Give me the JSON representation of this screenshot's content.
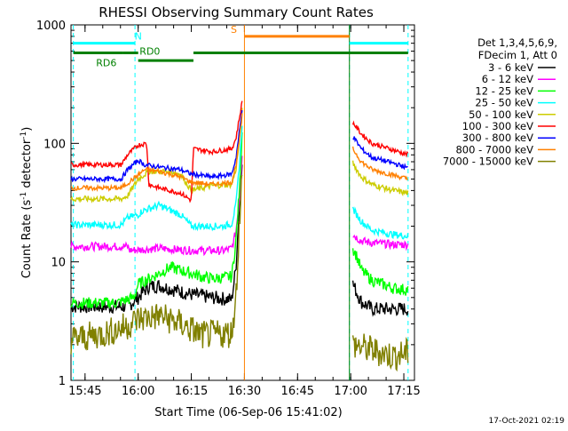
{
  "chart_data": {
    "type": "line",
    "title": "RHESSI Observing Summary Count Rates",
    "xlabel": "Start Time (06-Sep-06 15:41:02)",
    "ylabel_parts": [
      "Count Rate (s",
      "-1",
      " detector",
      "-1",
      ")"
    ],
    "footer": "17-Oct-2021 02:19",
    "xlim": [
      15.6839,
      17.3
    ],
    "ylim": [
      1,
      1000
    ],
    "yscale": "log",
    "x_ticks": [
      {
        "value": 15.75,
        "label": "15:45"
      },
      {
        "value": 16.0,
        "label": "16:00"
      },
      {
        "value": 16.25,
        "label": "16:15"
      },
      {
        "value": 16.5,
        "label": "16:30"
      },
      {
        "value": 16.75,
        "label": "16:45"
      },
      {
        "value": 17.0,
        "label": "17:00"
      },
      {
        "value": 17.25,
        "label": "17:15"
      }
    ],
    "x_minor_step": 0.0833333,
    "y_ticks": [
      {
        "value": 1,
        "label": "1"
      },
      {
        "value": 10,
        "label": "10"
      },
      {
        "value": 100,
        "label": "100"
      },
      {
        "value": 1000,
        "label": "1000"
      }
    ],
    "legend": {
      "position": "right",
      "header": [
        "Det 1,3,4,5,6,9,",
        "FDecim 1, Att 0"
      ]
    },
    "series": [
      {
        "name": "3 - 6 keV",
        "color": "#000000",
        "jitter": 0.12,
        "segments": [
          [
            [
              15.684,
              4.2
            ],
            [
              15.95,
              4.2
            ],
            [
              16.0,
              5.0
            ],
            [
              16.02,
              5.5
            ],
            [
              16.05,
              6.2
            ],
            [
              16.1,
              6.3
            ],
            [
              16.2,
              5.6
            ],
            [
              16.25,
              5.3
            ],
            [
              16.35,
              5.0
            ],
            [
              16.44,
              4.8
            ],
            [
              16.46,
              9
            ],
            [
              16.48,
              40
            ],
            [
              16.49,
              80
            ]
          ],
          [
            [
              17.01,
              6.5
            ],
            [
              17.05,
              4.6
            ],
            [
              17.1,
              4.0
            ],
            [
              17.2,
              4.0
            ],
            [
              17.27,
              4.0
            ]
          ]
        ]
      },
      {
        "name": "6 - 12 keV",
        "color": "#ff00ff",
        "jitter": 0.07,
        "segments": [
          [
            [
              15.684,
              13.5
            ],
            [
              15.95,
              13.5
            ],
            [
              15.96,
              12.5
            ],
            [
              16.1,
              13.0
            ],
            [
              16.15,
              12.8
            ],
            [
              16.25,
              12.5
            ],
            [
              16.4,
              12.4
            ],
            [
              16.44,
              13
            ],
            [
              16.46,
              18
            ],
            [
              16.48,
              40
            ],
            [
              16.49,
              90
            ]
          ],
          [
            [
              17.01,
              17
            ],
            [
              17.05,
              15
            ],
            [
              17.1,
              14.5
            ],
            [
              17.2,
              14.0
            ],
            [
              17.27,
              14.0
            ]
          ]
        ]
      },
      {
        "name": "12 - 25 keV",
        "color": "#00ff00",
        "jitter": 0.1,
        "segments": [
          [
            [
              15.684,
              4.5
            ],
            [
              15.9,
              4.5
            ],
            [
              15.98,
              5.0
            ],
            [
              16.0,
              6.5
            ],
            [
              16.1,
              8.0
            ],
            [
              16.15,
              9.0
            ],
            [
              16.25,
              8.0
            ],
            [
              16.3,
              7.5
            ],
            [
              16.35,
              7.2
            ],
            [
              16.44,
              7.5
            ],
            [
              16.46,
              15
            ],
            [
              16.48,
              50
            ],
            [
              16.49,
              150
            ]
          ],
          [
            [
              17.01,
              13
            ],
            [
              17.03,
              11
            ],
            [
              17.05,
              8.5
            ],
            [
              17.1,
              7.0
            ],
            [
              17.2,
              6.0
            ],
            [
              17.27,
              5.8
            ]
          ]
        ]
      },
      {
        "name": "25 - 50 keV",
        "color": "#00ffff",
        "jitter": 0.06,
        "segments": [
          [
            [
              15.684,
              20.5
            ],
            [
              15.92,
              20.5
            ],
            [
              15.95,
              23.5
            ],
            [
              16.0,
              25.0
            ],
            [
              16.02,
              27.0
            ],
            [
              16.1,
              30.0
            ],
            [
              16.2,
              25.0
            ],
            [
              16.25,
              20.0
            ],
            [
              16.4,
              20.0
            ],
            [
              16.44,
              21
            ],
            [
              16.46,
              30
            ],
            [
              16.48,
              80
            ],
            [
              16.49,
              160
            ]
          ],
          [
            [
              17.01,
              28
            ],
            [
              17.05,
              22
            ],
            [
              17.1,
              18.5
            ],
            [
              17.2,
              17.0
            ],
            [
              17.27,
              16.5
            ]
          ]
        ]
      },
      {
        "name": "50 - 100 keV",
        "color": "#cccc00",
        "jitter": 0.05,
        "segments": [
          [
            [
              15.684,
              34
            ],
            [
              15.92,
              34
            ],
            [
              15.95,
              36
            ],
            [
              16.0,
              50
            ],
            [
              16.05,
              58
            ],
            [
              16.15,
              58
            ],
            [
              16.2,
              55
            ],
            [
              16.25,
              40
            ],
            [
              16.35,
              44
            ],
            [
              16.44,
              45
            ],
            [
              16.46,
              60
            ],
            [
              16.48,
              120
            ],
            [
              16.49,
              200
            ]
          ],
          [
            [
              17.01,
              68
            ],
            [
              17.05,
              52
            ],
            [
              17.1,
              45
            ],
            [
              17.2,
              40
            ],
            [
              17.27,
              38
            ]
          ]
        ]
      },
      {
        "name": "100 - 300 keV",
        "color": "#ff0000",
        "jitter": 0.04,
        "segments": [
          [
            [
              15.684,
              66
            ],
            [
              15.92,
              66
            ],
            [
              15.95,
              80
            ],
            [
              16.0,
              97
            ],
            [
              16.04,
              100
            ],
            [
              16.05,
              45
            ],
            [
              16.1,
              42
            ],
            [
              16.2,
              38
            ],
            [
              16.25,
              33
            ],
            [
              16.26,
              90
            ],
            [
              16.35,
              85
            ],
            [
              16.44,
              90
            ],
            [
              16.46,
              110
            ],
            [
              16.48,
              180
            ],
            [
              16.49,
              230
            ]
          ],
          [
            [
              17.01,
              150
            ],
            [
              17.05,
              120
            ],
            [
              17.1,
              100
            ],
            [
              17.2,
              88
            ],
            [
              17.27,
              80
            ]
          ]
        ]
      },
      {
        "name": "300 - 800 keV",
        "color": "#0000ff",
        "jitter": 0.04,
        "segments": [
          [
            [
              15.684,
              50
            ],
            [
              15.92,
              50
            ],
            [
              15.95,
              60
            ],
            [
              16.0,
              72
            ],
            [
              16.03,
              66
            ],
            [
              16.1,
              63
            ],
            [
              16.2,
              60
            ],
            [
              16.25,
              55
            ],
            [
              16.35,
              52
            ],
            [
              16.44,
              55
            ],
            [
              16.46,
              75
            ],
            [
              16.48,
              140
            ],
            [
              16.49,
              200
            ]
          ],
          [
            [
              17.01,
              115
            ],
            [
              17.05,
              90
            ],
            [
              17.1,
              76
            ],
            [
              17.2,
              68
            ],
            [
              17.27,
              62
            ]
          ]
        ]
      },
      {
        "name": "800 - 7000 keV",
        "color": "#ff8000",
        "jitter": 0.04,
        "segments": [
          [
            [
              15.684,
              42
            ],
            [
              15.92,
              42
            ],
            [
              15.95,
              46
            ],
            [
              16.0,
              54
            ],
            [
              16.03,
              60
            ],
            [
              16.1,
              58
            ],
            [
              16.2,
              52
            ],
            [
              16.25,
              47
            ],
            [
              16.35,
              45
            ],
            [
              16.44,
              47
            ],
            [
              16.46,
              65
            ],
            [
              16.48,
              120
            ],
            [
              16.49,
              180
            ]
          ],
          [
            [
              17.01,
              90
            ],
            [
              17.05,
              70
            ],
            [
              17.1,
              60
            ],
            [
              17.2,
              54
            ],
            [
              17.27,
              50
            ]
          ]
        ]
      },
      {
        "name": "7000 - 15000 keV",
        "color": "#808000",
        "jitter": 0.25,
        "segments": [
          [
            [
              15.684,
              2.2
            ],
            [
              15.85,
              2.5
            ],
            [
              15.95,
              2.9
            ],
            [
              16.0,
              3.3
            ],
            [
              16.1,
              3.5
            ],
            [
              16.2,
              3.0
            ],
            [
              16.3,
              2.4
            ],
            [
              16.44,
              2.5
            ],
            [
              16.46,
              5
            ],
            [
              16.48,
              30
            ],
            [
              16.49,
              60
            ]
          ],
          [
            [
              17.01,
              2.0
            ],
            [
              17.1,
              1.8
            ],
            [
              17.2,
              1.6
            ],
            [
              17.27,
              1.7
            ]
          ]
        ]
      }
    ],
    "vertical_lines": [
      {
        "x": 15.695,
        "color": "#00ffff",
        "style": "dashed"
      },
      {
        "x": 15.985,
        "color": "#00ffff",
        "style": "dashed"
      },
      {
        "x": 16.994,
        "color": "#00ffff",
        "style": "dashed"
      },
      {
        "x": 17.27,
        "color": "#00ffff",
        "style": "dashed"
      },
      {
        "x": 16.5,
        "color": "#ff8000",
        "style": "solid"
      },
      {
        "x": 16.994,
        "color": "#008000",
        "style": "solid"
      }
    ],
    "flag_bars": [
      {
        "label": "N",
        "color": "#00ffff",
        "y": 700,
        "ranges": [
          [
            15.695,
            15.985
          ],
          [
            16.994,
            17.27
          ]
        ],
        "label_at": 16.0
      },
      {
        "label": "S",
        "color": "#ff8000",
        "y": 800,
        "ranges": [
          [
            16.5,
            16.994
          ]
        ],
        "label_at": 16.45
      },
      {
        "label": "",
        "color": "#008000",
        "y": 580,
        "ranges": [
          [
            15.695,
            15.93
          ],
          [
            16.26,
            17.27
          ]
        ]
      },
      {
        "label": "RD6",
        "color": "#008000",
        "y": 580,
        "ranges": [
          [
            15.93,
            16.0
          ]
        ],
        "label_at": 15.85,
        "label_y": 480
      },
      {
        "label": "RD0",
        "color": "#008000",
        "y": 500,
        "ranges": [
          [
            16.0,
            16.26
          ]
        ],
        "label_at": 16.055,
        "label_y": 600
      }
    ]
  }
}
